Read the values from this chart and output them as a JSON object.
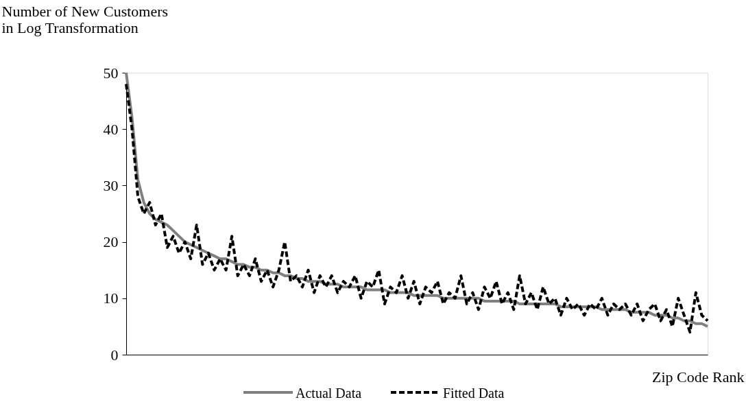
{
  "chart_data": {
    "type": "line",
    "ylabel": "Number of New Customers\nin Log Transformation",
    "xlabel": "Zip Code Rank",
    "categories": [
      null,
      null,
      null,
      null,
      null,
      null,
      null,
      null,
      null,
      null,
      null,
      null,
      null,
      null,
      null,
      null,
      null,
      null,
      null,
      null,
      null,
      null,
      null,
      null,
      null,
      null,
      null,
      null,
      null,
      null,
      null,
      null,
      null,
      null,
      null,
      null,
      null,
      null,
      null,
      null,
      null,
      null,
      null,
      null,
      null,
      null,
      null,
      null,
      null,
      null,
      null,
      null,
      null,
      null,
      null,
      null,
      null,
      null,
      null,
      null,
      null,
      null,
      null,
      null,
      null,
      null,
      null,
      null,
      null,
      null,
      null,
      null,
      null,
      null,
      null,
      null,
      null,
      null,
      null,
      null,
      null,
      null,
      null,
      null,
      null,
      null,
      null,
      null,
      null,
      null,
      null,
      null,
      null,
      null,
      null,
      null,
      null,
      null,
      null,
      null
    ],
    "series": [
      {
        "name": "Actual Data",
        "color": "#808080",
        "line_style": "solid",
        "values": [
          50,
          42,
          31,
          27,
          25,
          24,
          23.5,
          23,
          22,
          21,
          20,
          19.5,
          19,
          18.5,
          18,
          17.5,
          17,
          17,
          16.5,
          16,
          16,
          15.5,
          15.5,
          15,
          15,
          14.5,
          14.5,
          14,
          14,
          13.5,
          13.5,
          13,
          13,
          13,
          12.5,
          12.5,
          12.5,
          12,
          12,
          12,
          12,
          11.5,
          11.5,
          11.5,
          11.5,
          11,
          11,
          11,
          11,
          10.5,
          10.5,
          10.5,
          10.5,
          10.5,
          10,
          10,
          10,
          10,
          10,
          10,
          10,
          9.5,
          9.5,
          9.5,
          9.5,
          9.5,
          9.5,
          9,
          9,
          9,
          9,
          9,
          9,
          9,
          8.5,
          8.5,
          8.5,
          8.5,
          8.5,
          8.5,
          8.5,
          8,
          8,
          8,
          8,
          8,
          7.5,
          7.5,
          7.5,
          7.5,
          7,
          7,
          7,
          6.5,
          6.5,
          6,
          6,
          5.5,
          5.5,
          5
        ]
      },
      {
        "name": "Fitted Data",
        "color": "#000000",
        "line_style": "dashed",
        "values": [
          48,
          40,
          28,
          25,
          27,
          23,
          25,
          19,
          21,
          18,
          20,
          17,
          23,
          16,
          18,
          15,
          17,
          15,
          21,
          14,
          16,
          14,
          17,
          13,
          15,
          12,
          15,
          20,
          13,
          14,
          12,
          15,
          11,
          14,
          12,
          14,
          11,
          13,
          12,
          14,
          10,
          13,
          12,
          15,
          9,
          12,
          11,
          14,
          10,
          13,
          9,
          12,
          11,
          13,
          9,
          11,
          10,
          14,
          9,
          11,
          8,
          12,
          10,
          13,
          9,
          11,
          8,
          14,
          9,
          11,
          8,
          12,
          9,
          10,
          7,
          10,
          8,
          9,
          7,
          9,
          8,
          10,
          7,
          9,
          8,
          9,
          7,
          9,
          6,
          8,
          9,
          6,
          8,
          5,
          10,
          7,
          4,
          11,
          7,
          6
        ]
      }
    ],
    "ylim": [
      0,
      50
    ],
    "yticks": [
      0,
      10,
      20,
      30,
      40,
      50
    ],
    "tick_labels": "y",
    "grid": false,
    "legend": "bottom"
  }
}
